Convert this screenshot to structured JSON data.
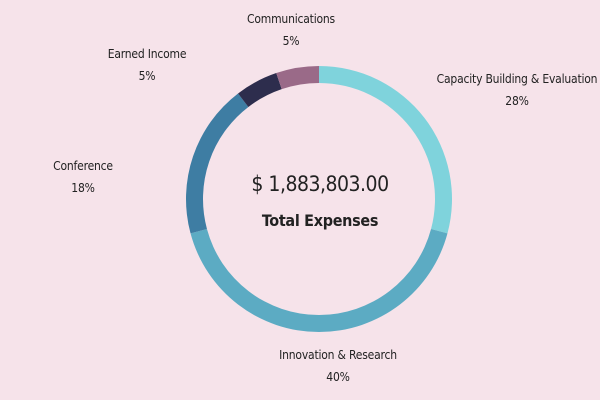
{
  "chart_data": {
    "type": "pie",
    "variant": "donut",
    "center_value": "$ 1,883,803.00",
    "center_label": "Total Expenses",
    "slices": [
      {
        "label": "Capacity Building & Evaluation",
        "pct_label": "28%",
        "value": 28,
        "color": "#7fd3dc"
      },
      {
        "label": "Innovation & Research",
        "pct_label": "40%",
        "value": 40,
        "color": "#5cabc3"
      },
      {
        "label": "Conference",
        "pct_label": "18%",
        "value": 18,
        "color": "#3e7da3"
      },
      {
        "label": "Earned Income",
        "pct_label": "5%",
        "value": 5,
        "color": "#2d2d4d"
      },
      {
        "label": "Communications",
        "pct_label": "5%",
        "value": 5,
        "color": "#9a6a88"
      }
    ],
    "legend": "none"
  }
}
